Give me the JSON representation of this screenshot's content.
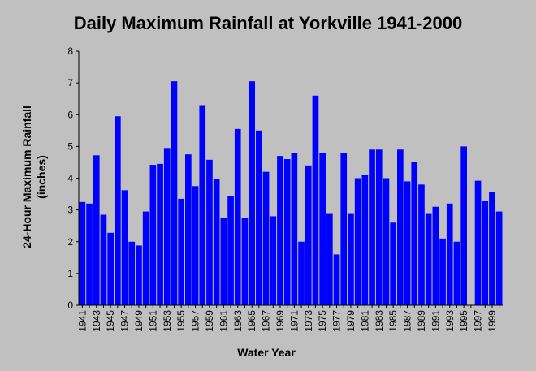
{
  "chart_data": {
    "type": "bar",
    "title": "Daily Maximum Rainfall at Yorkville 1941-2000",
    "xlabel": "Water Year",
    "ylabel": "24-Hour Maximum Rainfall (inches)",
    "ylabel_lines": [
      "24-Hour Maximum Rainfall",
      "(inches)"
    ],
    "ylim": [
      0,
      8
    ],
    "yticks": [
      0,
      1,
      2,
      3,
      4,
      5,
      6,
      7,
      8
    ],
    "grid": false,
    "legend": "none",
    "bar_color": "#0000ff",
    "background_color": "#c0c0c0",
    "categories": [
      1941,
      1942,
      1943,
      1944,
      1945,
      1946,
      1947,
      1948,
      1949,
      1950,
      1951,
      1952,
      1953,
      1954,
      1955,
      1956,
      1957,
      1958,
      1959,
      1960,
      1961,
      1962,
      1963,
      1964,
      1965,
      1966,
      1967,
      1968,
      1969,
      1970,
      1971,
      1972,
      1973,
      1974,
      1975,
      1976,
      1977,
      1978,
      1979,
      1980,
      1981,
      1982,
      1983,
      1984,
      1985,
      1986,
      1987,
      1988,
      1989,
      1990,
      1991,
      1992,
      1993,
      1994,
      1995,
      1996,
      1997,
      1998,
      1999,
      2000
    ],
    "xtick_labels": [
      "1941",
      "1943",
      "1945",
      "1947",
      "1949",
      "1951",
      "1953",
      "1955",
      "1957",
      "1959",
      "1961",
      "1963",
      "1965",
      "1967",
      "1969",
      "1971",
      "1973",
      "1975",
      "1977",
      "1979",
      "1981",
      "1983",
      "1985",
      "1987",
      "1989",
      "1991",
      "1993",
      "1995",
      "1997",
      "1999"
    ],
    "values": [
      3.25,
      3.2,
      4.72,
      2.85,
      2.28,
      5.95,
      3.62,
      2.0,
      1.88,
      2.95,
      4.42,
      4.45,
      4.95,
      7.05,
      3.35,
      4.75,
      3.75,
      6.3,
      4.58,
      3.98,
      2.75,
      3.45,
      5.55,
      2.75,
      7.05,
      5.5,
      4.2,
      2.8,
      4.7,
      4.6,
      4.8,
      2.0,
      4.4,
      6.6,
      4.8,
      2.9,
      1.6,
      4.8,
      2.9,
      4.0,
      4.1,
      4.9,
      4.9,
      4.0,
      2.6,
      4.9,
      3.9,
      4.5,
      3.8,
      2.9,
      3.1,
      2.1,
      3.2,
      2.0,
      5.0,
      0,
      3.92,
      3.28,
      3.57,
      2.95
    ]
  }
}
